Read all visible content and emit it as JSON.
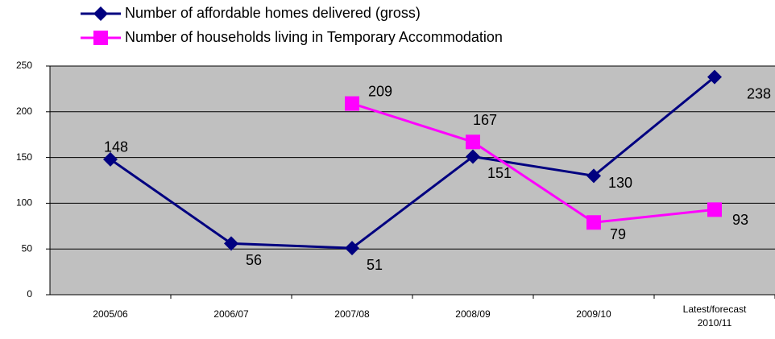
{
  "chart_data": {
    "type": "line",
    "categories": [
      "2005/06",
      "2006/07",
      "2007/08",
      "2008/09",
      "2009/10",
      "Latest/forecast 2010/11"
    ],
    "series": [
      {
        "name": "Number of affordable homes delivered (gross)",
        "color": "#000080",
        "marker": "diamond",
        "values": [
          148,
          56,
          51,
          151,
          130,
          238
        ]
      },
      {
        "name": "Number of households living in Temporary Accommodation",
        "color": "#ff00ff",
        "marker": "square",
        "values": [
          null,
          null,
          209,
          167,
          79,
          93
        ]
      }
    ],
    "ylim": [
      0,
      250
    ],
    "yticks": [
      0,
      50,
      100,
      150,
      200,
      250
    ],
    "grid": true,
    "legend": "top"
  }
}
